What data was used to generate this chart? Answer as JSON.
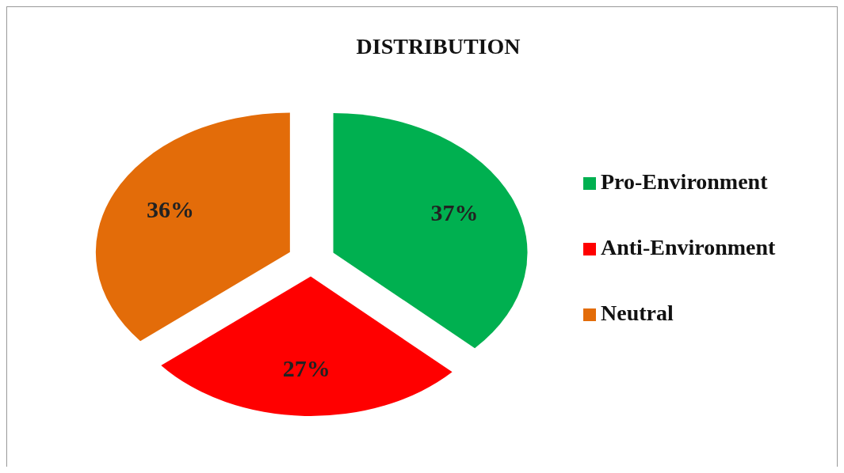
{
  "chart_data": {
    "type": "pie",
    "title": "DISTRIBUTION",
    "categories": [
      "Pro-Environment",
      "Anti-Environment",
      "Neutral"
    ],
    "values": [
      37,
      27,
      36
    ],
    "colors": [
      "#00b050",
      "#ff0000",
      "#e36c09"
    ],
    "value_labels": [
      "37%",
      "27%",
      "36%"
    ],
    "legend": "right"
  }
}
